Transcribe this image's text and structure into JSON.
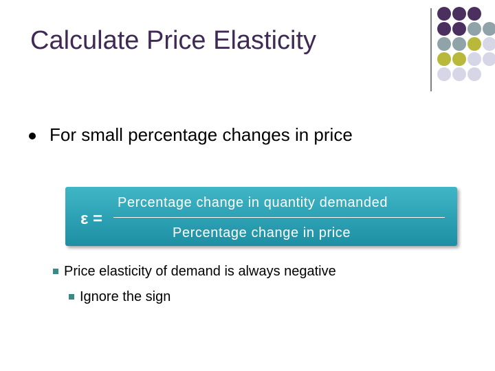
{
  "slide": {
    "title": "Calculate Price Elasticity",
    "bullet": "For small percentage changes in price",
    "formula": {
      "symbol": "ε =",
      "numerator": "Percentage change in quantity demanded",
      "denominator": "Percentage change in price"
    },
    "sub_bullet": "Price elasticity of demand is always negative",
    "sub_sub_bullet": "Ignore the sign"
  }
}
